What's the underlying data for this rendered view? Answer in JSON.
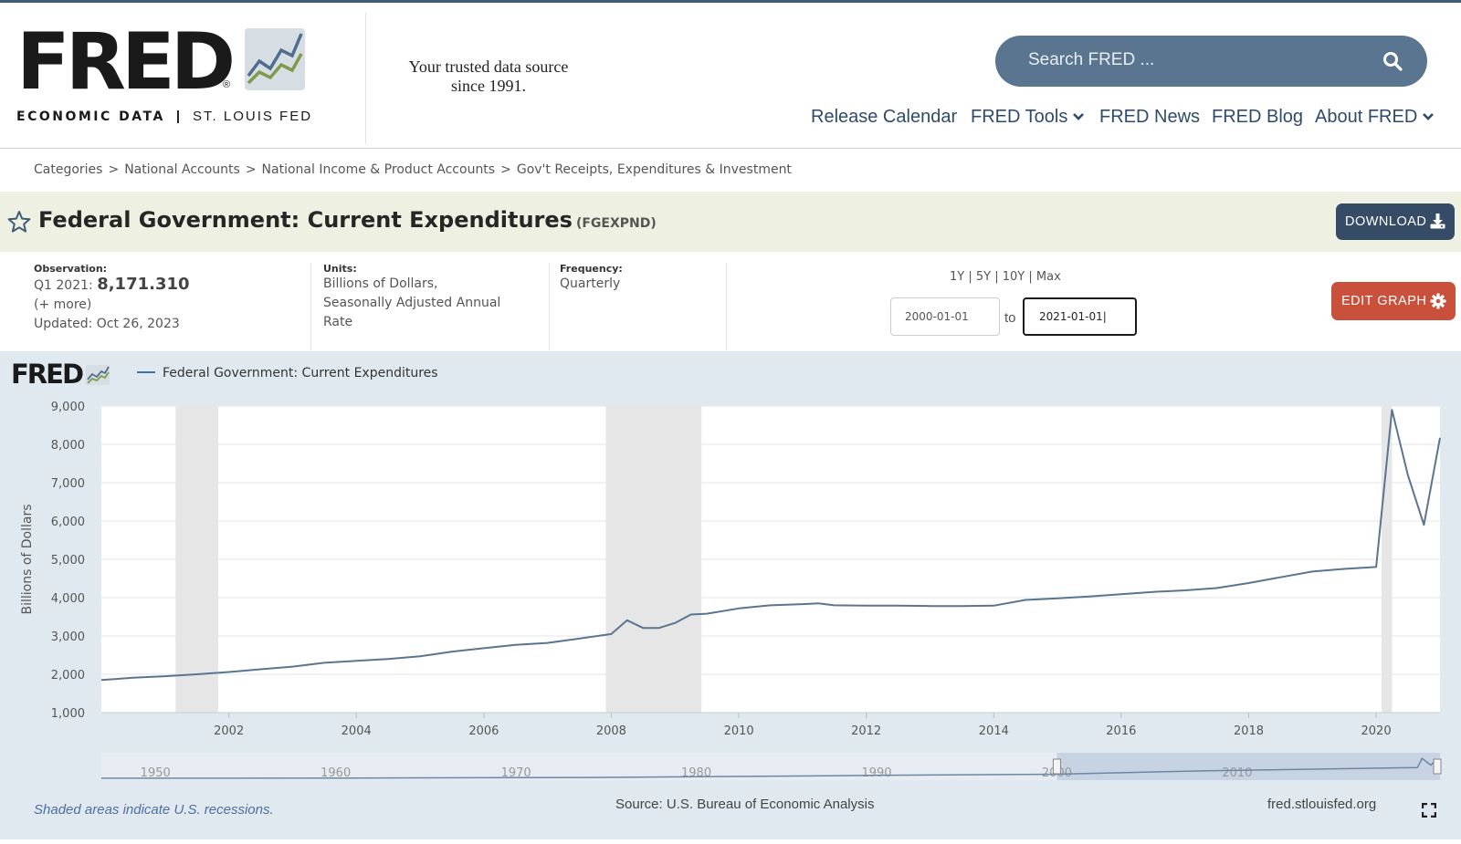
{
  "brand": {
    "logo_text": "FRED",
    "logo_sub_bold": "ECONOMIC DATA",
    "logo_sub_org": "ST. LOUIS FED",
    "tagline_line1": "Your trusted data source",
    "tagline_line2": "since 1991."
  },
  "search": {
    "placeholder": "Search FRED ...",
    "icon": "search-icon"
  },
  "nav": [
    {
      "label": "Release Calendar",
      "dropdown": false
    },
    {
      "label": "FRED Tools",
      "dropdown": true
    },
    {
      "label": "FRED News",
      "dropdown": false
    },
    {
      "label": "FRED Blog",
      "dropdown": false
    },
    {
      "label": "About FRED",
      "dropdown": true
    }
  ],
  "breadcrumb": [
    "Categories",
    "National Accounts",
    "National Income & Product Accounts",
    "Gov't Receipts, Expenditures & Investment"
  ],
  "series": {
    "title": "Federal Government: Current Expenditures",
    "id": "(FGEXPND)",
    "download_label": "DOWNLOAD"
  },
  "observation": {
    "label": "Observation:",
    "period": "Q1 2021:",
    "value": "8,171.310",
    "more": "(+ more)",
    "updated": "Updated: Oct 26, 2023"
  },
  "units": {
    "label": "Units:",
    "line1": "Billions of Dollars,",
    "line2": "Seasonally Adjusted Annual",
    "line3": "Rate"
  },
  "frequency": {
    "label": "Frequency:",
    "value": "Quarterly"
  },
  "range": {
    "links": [
      "1Y",
      "5Y",
      "10Y",
      "Max"
    ],
    "start": "2000-01-01",
    "to_label": "to",
    "end": "2021-01-01",
    "edit_label": "EDIT GRAPH"
  },
  "graph": {
    "legend": "Federal Government: Current Expenditures",
    "recession_note": "Shaded areas indicate U.S. recessions.",
    "source": "Source: U.S. Bureau of Economic Analysis",
    "url": "fred.stlouisfed.org",
    "navigator_ticks": [
      "1950",
      "1960",
      "1970",
      "1980",
      "1990",
      "2000",
      "2010"
    ]
  },
  "colors": {
    "line": "#5a7590",
    "recession": "#e6e6e6",
    "download": "#364b66",
    "edit": "#c9503b",
    "panel": "#e1e9f0"
  },
  "chart_data": {
    "type": "line",
    "ylabel": "Billions of Dollars",
    "ylim": [
      1000,
      9000
    ],
    "yticks": [
      1000,
      2000,
      3000,
      4000,
      5000,
      6000,
      7000,
      8000,
      9000
    ],
    "xlim": [
      "2000-01-01",
      "2021-01-01"
    ],
    "xticks": [
      "2002",
      "2004",
      "2006",
      "2008",
      "2010",
      "2012",
      "2014",
      "2016",
      "2018",
      "2020"
    ],
    "recessions": [
      [
        "2001-03-01",
        "2001-11-01"
      ],
      [
        "2007-12-01",
        "2009-06-01"
      ],
      [
        "2020-02-01",
        "2020-04-01"
      ]
    ],
    "series": [
      {
        "name": "Federal Government: Current Expenditures",
        "x": [
          "2000-01-01",
          "2000-07-01",
          "2001-01-01",
          "2001-07-01",
          "2002-01-01",
          "2002-07-01",
          "2003-01-01",
          "2003-07-01",
          "2004-01-01",
          "2004-07-01",
          "2005-01-01",
          "2005-07-01",
          "2006-01-01",
          "2006-07-01",
          "2007-01-01",
          "2007-07-01",
          "2008-01-01",
          "2008-04-01",
          "2008-07-01",
          "2008-10-01",
          "2009-01-01",
          "2009-04-01",
          "2009-07-01",
          "2010-01-01",
          "2010-07-01",
          "2011-01-01",
          "2011-04-01",
          "2011-07-01",
          "2012-01-01",
          "2012-07-01",
          "2013-01-01",
          "2013-07-01",
          "2014-01-01",
          "2014-07-01",
          "2015-01-01",
          "2015-07-01",
          "2016-01-01",
          "2016-07-01",
          "2017-01-01",
          "2017-07-01",
          "2018-01-01",
          "2018-07-01",
          "2019-01-01",
          "2019-07-01",
          "2020-01-01",
          "2020-04-01",
          "2020-07-01",
          "2020-10-01",
          "2021-01-01"
        ],
        "values": [
          1850,
          1910,
          1950,
          2000,
          2060,
          2130,
          2200,
          2300,
          2350,
          2400,
          2470,
          2590,
          2680,
          2770,
          2820,
          2930,
          3050,
          3410,
          3210,
          3210,
          3340,
          3560,
          3580,
          3720,
          3800,
          3830,
          3850,
          3800,
          3790,
          3790,
          3780,
          3780,
          3790,
          3940,
          3980,
          4030,
          4090,
          4150,
          4190,
          4250,
          4380,
          4530,
          4680,
          4750,
          4800,
          8900,
          7200,
          5900,
          8171
        ]
      }
    ]
  }
}
